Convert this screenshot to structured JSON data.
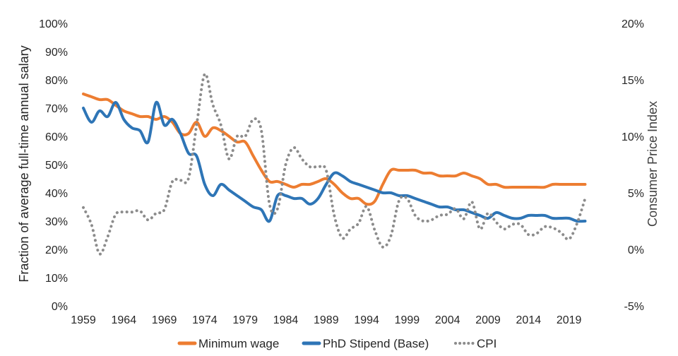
{
  "chart_data": {
    "type": "line",
    "title": "",
    "ylabel": "Fraction of average full-time annual salary",
    "y2label": "Consumer Price Index",
    "ylim": [
      0,
      100
    ],
    "y2lim": [
      -5,
      20
    ],
    "xlim": [
      1959,
      2022
    ],
    "x_ticks": [
      "1959",
      "1964",
      "1969",
      "1974",
      "1979",
      "1984",
      "1989",
      "1994",
      "1999",
      "2004",
      "2009",
      "2014",
      "2019"
    ],
    "y_ticks": [
      "0%",
      "10%",
      "20%",
      "30%",
      "40%",
      "50%",
      "60%",
      "70%",
      "80%",
      "90%",
      "100%"
    ],
    "y2_ticks": [
      "-5%",
      "0%",
      "5%",
      "10%",
      "15%",
      "20%"
    ],
    "grid": false,
    "legend_position": "bottom",
    "series": [
      {
        "name": "Minimum wage",
        "axis": "left",
        "color": "#ED7D31",
        "style": "solid",
        "x": [
          1959,
          1960,
          1961,
          1962,
          1963,
          1964,
          1965,
          1966,
          1967,
          1968,
          1969,
          1970,
          1971,
          1972,
          1973,
          1974,
          1975,
          1976,
          1977,
          1978,
          1979,
          1980,
          1981,
          1982,
          1983,
          1984,
          1985,
          1986,
          1987,
          1988,
          1989,
          1990,
          1991,
          1992,
          1993,
          1994,
          1995,
          1996,
          1997,
          1998,
          1999,
          2000,
          2001,
          2002,
          2003,
          2004,
          2005,
          2006,
          2007,
          2008,
          2009,
          2010,
          2011,
          2012,
          2013,
          2014,
          2015,
          2016,
          2017,
          2018,
          2019,
          2020,
          2021
        ],
        "values": [
          75,
          74,
          73,
          73,
          71,
          69,
          68,
          67,
          67,
          66,
          67,
          65,
          61,
          61,
          65,
          60,
          63,
          62,
          60,
          58,
          58,
          53,
          48,
          44,
          44,
          43,
          42,
          43,
          43,
          44,
          45,
          43,
          40,
          38,
          38,
          36,
          37,
          43,
          48,
          48,
          48,
          48,
          47,
          47,
          46,
          46,
          46,
          47,
          46,
          45,
          43,
          43,
          42,
          42,
          42,
          42,
          42,
          42,
          43,
          43,
          43,
          43,
          43
        ]
      },
      {
        "name": "PhD Stipend (Base)",
        "axis": "left",
        "color": "#2E75B6",
        "style": "solid",
        "x": [
          1959,
          1960,
          1961,
          1962,
          1963,
          1964,
          1965,
          1966,
          1967,
          1968,
          1969,
          1970,
          1971,
          1972,
          1973,
          1974,
          1975,
          1976,
          1977,
          1978,
          1979,
          1980,
          1981,
          1982,
          1983,
          1984,
          1985,
          1986,
          1987,
          1988,
          1989,
          1990,
          1991,
          1992,
          1993,
          1994,
          1995,
          1996,
          1997,
          1998,
          1999,
          2000,
          2001,
          2002,
          2003,
          2004,
          2005,
          2006,
          2007,
          2008,
          2009,
          2010,
          2011,
          2012,
          2013,
          2014,
          2015,
          2016,
          2017,
          2018,
          2019,
          2020,
          2021
        ],
        "values": [
          70,
          65,
          69,
          67,
          72,
          66,
          63,
          62,
          58,
          72,
          64,
          66,
          61,
          54,
          53,
          43,
          39,
          43,
          41,
          39,
          37,
          35,
          34,
          30,
          39,
          39,
          38,
          38,
          36,
          38,
          43,
          47,
          46,
          44,
          43,
          42,
          41,
          40,
          40,
          39,
          39,
          38,
          37,
          36,
          35,
          35,
          34,
          34,
          33,
          32,
          31,
          33,
          32,
          31,
          31,
          32,
          32,
          32,
          31,
          31,
          31,
          30,
          30
        ]
      },
      {
        "name": "CPI",
        "axis": "right",
        "color": "#8C8C8C",
        "style": "dotted",
        "x": [
          1959,
          1960,
          1961,
          1962,
          1963,
          1964,
          1965,
          1966,
          1967,
          1968,
          1969,
          1970,
          1971,
          1972,
          1973,
          1974,
          1975,
          1976,
          1977,
          1978,
          1979,
          1980,
          1981,
          1982,
          1983,
          1984,
          1985,
          1986,
          1987,
          1988,
          1989,
          1990,
          1991,
          1992,
          1993,
          1994,
          1995,
          1996,
          1997,
          1998,
          1999,
          2000,
          2001,
          2002,
          2003,
          2004,
          2005,
          2006,
          2007,
          2008,
          2009,
          2010,
          2011,
          2012,
          2013,
          2014,
          2015,
          2016,
          2017,
          2018,
          2019,
          2020,
          2021
        ],
        "values": [
          3.7,
          2.2,
          -0.4,
          1.1,
          3.1,
          3.3,
          3.3,
          3.4,
          2.6,
          3.2,
          3.5,
          6.0,
          6.1,
          6.3,
          11.0,
          15.5,
          12.8,
          11.0,
          8.0,
          10.0,
          10.0,
          11.5,
          10.5,
          4.0,
          3.6,
          7.5,
          9.0,
          8.0,
          7.3,
          7.3,
          7.0,
          3.0,
          1.0,
          1.8,
          2.3,
          3.8,
          1.7,
          0.2,
          1.2,
          4.3,
          4.5,
          3.0,
          2.5,
          2.6,
          3.0,
          3.1,
          3.6,
          2.7,
          4.2,
          1.8,
          3.2,
          2.4,
          1.8,
          2.2,
          2.2,
          1.3,
          1.4,
          2.0,
          1.9,
          1.5,
          0.9,
          2.3,
          4.5
        ]
      }
    ]
  }
}
